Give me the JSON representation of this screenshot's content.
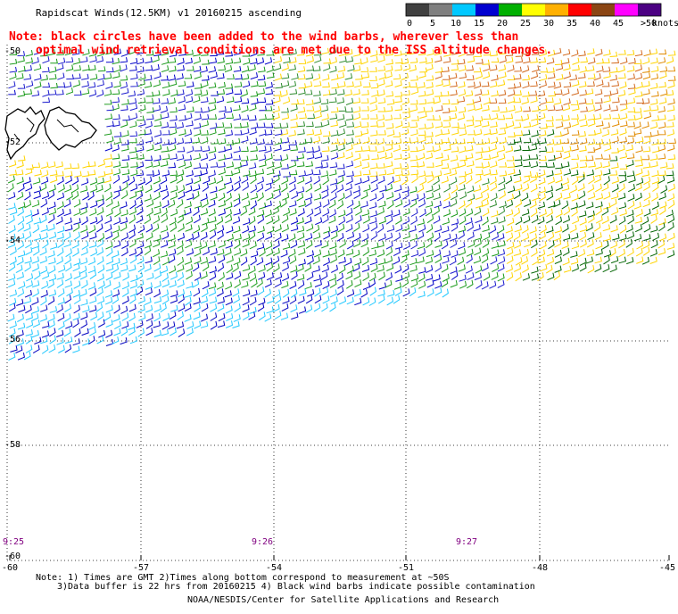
{
  "header": {
    "title": "Rapidscat Winds(12.5KM) v1 20160215 ascending",
    "note_line1": "Note: black circles have been added to the wind barbs, wherever less than",
    "note_line2": "optimal wind retrieval conditions are met due to the ISS altitude changes."
  },
  "colorbar": {
    "unit": "knots",
    "bins": [
      {
        "label": "0",
        "color": "#404040"
      },
      {
        "label": "5",
        "color": "#7f7f7f"
      },
      {
        "label": "10",
        "color": "#00c8ff"
      },
      {
        "label": "15",
        "color": "#0000d0"
      },
      {
        "label": "20",
        "color": "#00b000"
      },
      {
        "label": "25",
        "color": "#ffff00"
      },
      {
        "label": "30",
        "color": "#ffb000"
      },
      {
        "label": "35",
        "color": "#ff0000"
      },
      {
        "label": "40",
        "color": "#8b4513"
      },
      {
        "label": "45",
        "color": "#ff00ff"
      },
      {
        "label": ">50",
        "color": "#4b0082"
      }
    ]
  },
  "axes": {
    "lat_labels": [
      "-50",
      "-52",
      "-54",
      "-56",
      "-58",
      "-60"
    ],
    "lon_labels": [
      "-60",
      "-57",
      "-54",
      "-51",
      "-48",
      "-45"
    ]
  },
  "time_labels": [
    "9:25",
    "9:26",
    "9:27"
  ],
  "footer": {
    "note_line1": "Note: 1) Times are GMT 2)Times along bottom correspond to measurement at ~50S",
    "note_line2": "3)Data buffer is 22 hrs from 20160215 4) Black wind barbs indicate possible contamination",
    "credit": "NOAA/NESDIS/Center for Satellite Applications and Research"
  },
  "map_features": {
    "landmass": "falkland-islands",
    "swath_color_regions": [
      "cyan",
      "blue",
      "green",
      "yellow",
      "orange"
    ]
  }
}
